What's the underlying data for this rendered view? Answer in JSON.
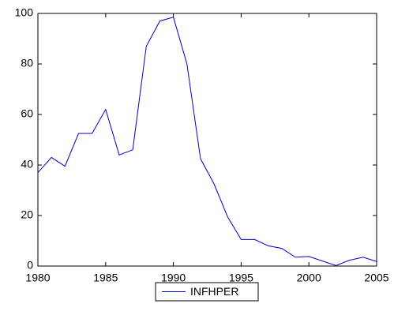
{
  "chart_data": {
    "type": "line",
    "x": [
      1980,
      1981,
      1982,
      1983,
      1984,
      1985,
      1986,
      1987,
      1988,
      1989,
      1990,
      1991,
      1992,
      1993,
      1994,
      1995,
      1996,
      1997,
      1998,
      1999,
      2000,
      2001,
      2002,
      2003,
      2004,
      2005
    ],
    "series": [
      {
        "name": "INFHPER",
        "color": "#0000cc",
        "values": [
          37,
          43,
          39.5,
          52.5,
          52.5,
          62,
          44,
          46,
          87,
          97,
          98.5,
          80,
          42.5,
          32.5,
          19.5,
          10.5,
          10.5,
          8,
          7,
          3.5,
          3.8,
          2,
          0.2,
          2.3,
          3.5,
          1.8
        ]
      }
    ],
    "xlim": [
      1980,
      2005
    ],
    "xticks": [
      1980,
      1985,
      1990,
      1995,
      2000,
      2005
    ],
    "ylim": [
      0,
      100
    ],
    "yticks": [
      0,
      20,
      40,
      60,
      80,
      100
    ],
    "grid": false,
    "legend": "bottom"
  }
}
